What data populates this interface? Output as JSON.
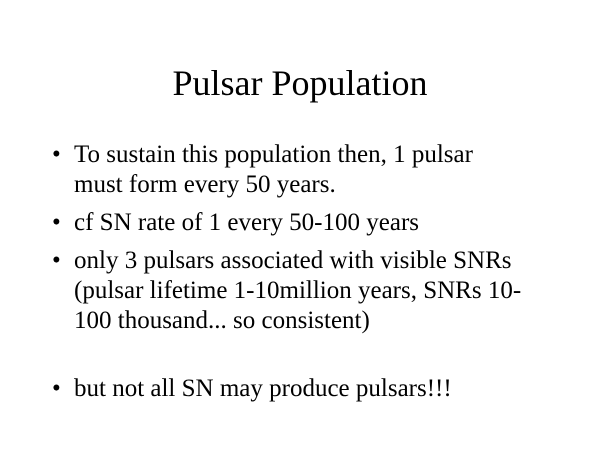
{
  "title": "Pulsar Population",
  "bullets": [
    "To sustain this population then, 1 pulsar must form every 50 years.",
    "cf SN rate of 1 every 50-100 years",
    "only 3 pulsars associated with visible SNRs (pulsar lifetime 1-10million years, SNRs 10-100 thousand... so consistent)",
    "but not all SN may produce pulsars!!!"
  ]
}
